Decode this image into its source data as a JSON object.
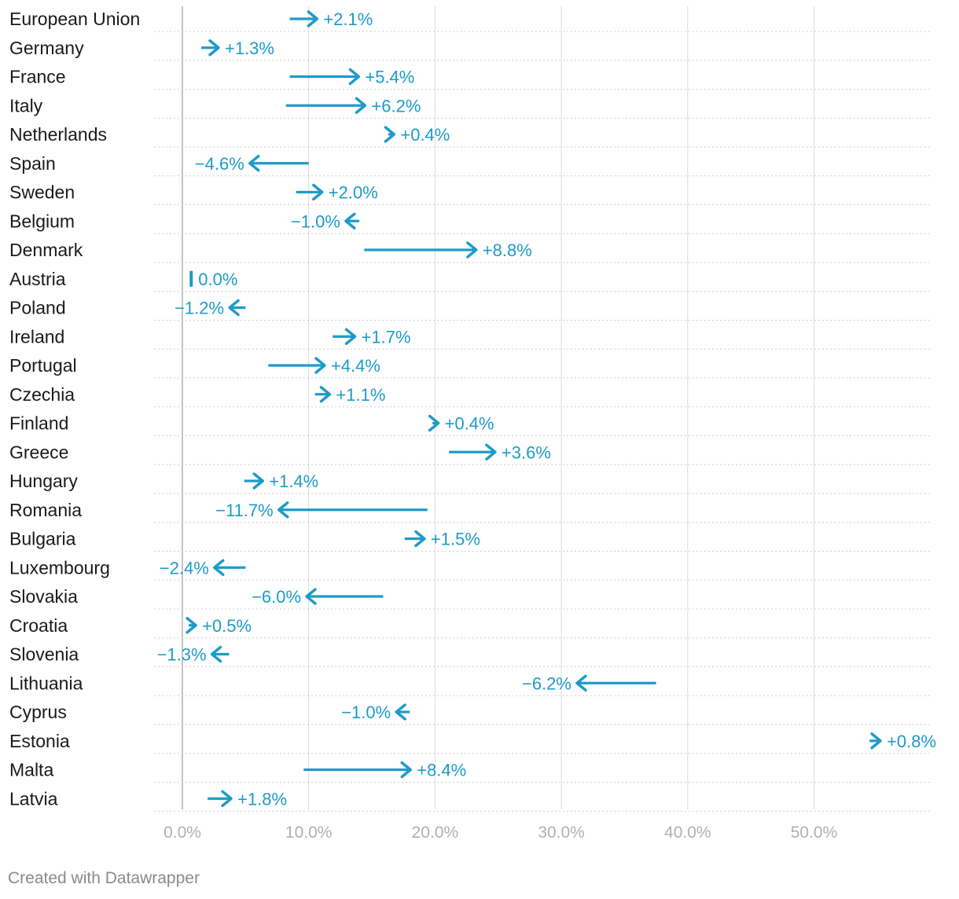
{
  "footer": "Created with Datawrapper",
  "colors": {
    "arrow": "#1d9bc9",
    "label_country": "#1a1a1a",
    "axis_tick": "#b0b0b0",
    "grid": "#dcdcdc",
    "zero_line": "#b5b5b5",
    "row_rule": "#cfcfcf"
  },
  "chart_data": {
    "type": "arrow",
    "xlim": [
      0,
      59
    ],
    "xticks": [
      0,
      10,
      20,
      30,
      40,
      50
    ],
    "xtick_labels": [
      "0.0%",
      "10.0%",
      "20.0%",
      "30.0%",
      "40.0%",
      "50.0%"
    ],
    "rows": [
      {
        "label": "European Union",
        "start": 8.5,
        "end": 10.6,
        "change": "+2.1%"
      },
      {
        "label": "Germany",
        "start": 1.5,
        "end": 2.8,
        "change": "+1.3%"
      },
      {
        "label": "France",
        "start": 8.5,
        "end": 13.9,
        "change": "+5.4%"
      },
      {
        "label": "Italy",
        "start": 8.2,
        "end": 14.4,
        "change": "+6.2%"
      },
      {
        "label": "Netherlands",
        "start": 16.3,
        "end": 16.7,
        "change": "+0.4%"
      },
      {
        "label": "Spain",
        "start": 10.0,
        "end": 5.4,
        "change": "−4.6%"
      },
      {
        "label": "Sweden",
        "start": 9.0,
        "end": 11.0,
        "change": "+2.0%"
      },
      {
        "label": "Belgium",
        "start": 14.0,
        "end": 13.0,
        "change": "−1.0%"
      },
      {
        "label": "Denmark",
        "start": 14.4,
        "end": 23.2,
        "change": "+8.8%"
      },
      {
        "label": "Austria",
        "start": 0.7,
        "end": 0.7,
        "change": "0.0%"
      },
      {
        "label": "Poland",
        "start": 5.0,
        "end": 3.8,
        "change": "−1.2%"
      },
      {
        "label": "Ireland",
        "start": 11.9,
        "end": 13.6,
        "change": "+1.7%"
      },
      {
        "label": "Portugal",
        "start": 6.8,
        "end": 11.2,
        "change": "+4.4%"
      },
      {
        "label": "Czechia",
        "start": 10.5,
        "end": 11.6,
        "change": "+1.1%"
      },
      {
        "label": "Finland",
        "start": 19.8,
        "end": 20.2,
        "change": "+0.4%"
      },
      {
        "label": "Greece",
        "start": 21.1,
        "end": 24.7,
        "change": "+3.6%"
      },
      {
        "label": "Hungary",
        "start": 4.9,
        "end": 6.3,
        "change": "+1.4%"
      },
      {
        "label": "Romania",
        "start": 19.4,
        "end": 7.7,
        "change": "−11.7%"
      },
      {
        "label": "Bulgaria",
        "start": 17.6,
        "end": 19.1,
        "change": "+1.5%"
      },
      {
        "label": "Luxembourg",
        "start": 5.0,
        "end": 2.6,
        "change": "−2.4%"
      },
      {
        "label": "Slovakia",
        "start": 15.9,
        "end": 9.9,
        "change": "−6.0%"
      },
      {
        "label": "Croatia",
        "start": 0.5,
        "end": 1.0,
        "change": "+0.5%"
      },
      {
        "label": "Slovenia",
        "start": 3.7,
        "end": 2.4,
        "change": "−1.3%"
      },
      {
        "label": "Lithuania",
        "start": 37.5,
        "end": 31.3,
        "change": "−6.2%"
      },
      {
        "label": "Cyprus",
        "start": 18.0,
        "end": 17.0,
        "change": "−1.0%"
      },
      {
        "label": "Estonia",
        "start": 54.4,
        "end": 55.2,
        "change": "+0.8%"
      },
      {
        "label": "Malta",
        "start": 9.6,
        "end": 18.0,
        "change": "+8.4%"
      },
      {
        "label": "Latvia",
        "start": 2.0,
        "end": 3.8,
        "change": "+1.8%"
      }
    ]
  }
}
